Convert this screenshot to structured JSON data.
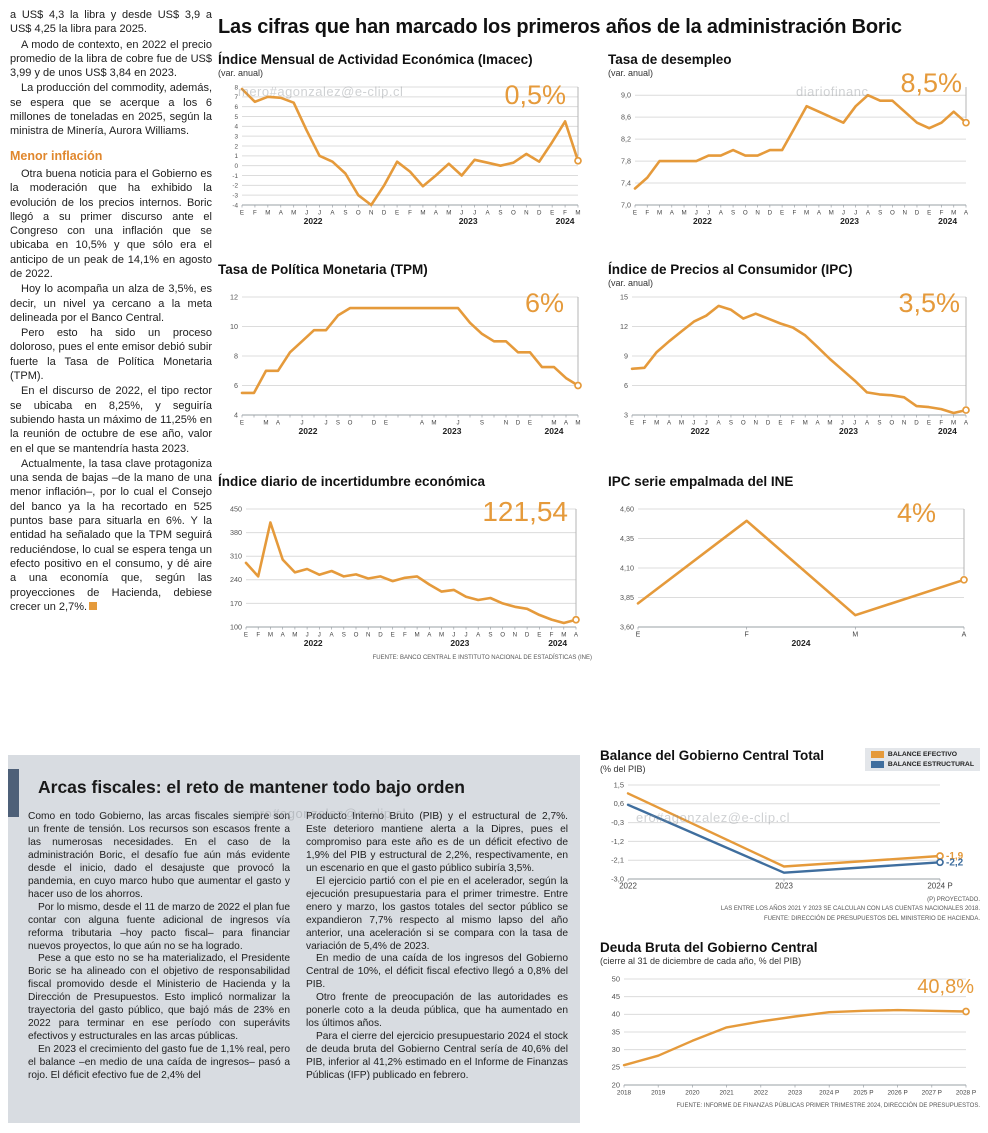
{
  "colors": {
    "accent": "#E59A3B",
    "blue": "#3F6E9E",
    "box_bg": "#D8DCE1"
  },
  "header": {
    "title": "Las cifras que han marcado los primeros años de la administración Boric"
  },
  "article": {
    "paragraphs": [
      "a US$ 4,3 la libra y desde US$ 3,9 a US$ 4,25 la libra para 2025.",
      "A modo de contexto, en 2022 el precio promedio de la libra de cobre fue de US$ 3,99 y de unos US$ 3,84 en 2023.",
      "La producción del commodity, además, se espera que se acerque a los 6 millones de toneladas en 2025, según la ministra de Minería, Aurora Williams.",
      "Otra buena noticia para el Gobierno es la moderación que ha exhibido la evolución de los precios internos. Boric llegó a su primer discurso ante el Congreso con una inflación que se ubicaba en 10,5% y que sólo era el anticipo de un peak de 14,1% en agosto de 2022.",
      "Hoy lo acompaña un alza de 3,5%, es decir, un nivel ya cercano a la meta delineada por el Banco Central.",
      "Pero esto ha sido un proceso doloroso, pues el ente emisor debió subir fuerte la Tasa de Política Monetaria (TPM).",
      "En el discurso de 2022, el tipo rector se ubicaba en 8,25%, y seguiría subiendo hasta un máximo de 11,25% en la reunión de octubre de ese año, valor en el que se mantendría hasta 2023.",
      "Actualmente, la tasa clave protagoniza una senda de bajas –de la mano de una menor inflación–, por lo cual el Consejo del banco ya la ha recortado en 525 puntos base para situarla en 6%. Y la entidad ha señalado que la TPM seguirá reduciéndose, lo cual se espera tenga un efecto positivo en el consumo, y dé aire a una economía que, según las proyecciones de Hacienda, debiese crecer un 2,7%."
    ],
    "subhead": "Menor inflación"
  },
  "fiscal": {
    "title": "Arcas fiscales: el reto de mantener todo bajo orden",
    "col1": [
      "Como en todo Gobierno, las arcas fiscales siempre son un frente de tensión. Los recursos son escasos frente a las numerosas necesidades. En el caso de la administración Boric, el desafío fue aún más evidente desde el inicio, dado el desajuste que provocó la pandemia, en cuyo marco hubo que aumentar el gasto y hacer uso de los ahorros.",
      "Por lo mismo, desde el 11 de marzo de 2022 el plan fue contar con alguna fuente adicional de ingresos vía reforma tributaria –hoy pacto fiscal– para financiar nuevos proyectos, lo que aún no se ha logrado.",
      "Pese a que esto no se ha materializado, el Presidente Boric se ha alineado con el objetivo de responsabilidad fiscal promovido desde el Ministerio de Hacienda y la Dirección de Presupuestos. Esto implicó normalizar la trayectoria del gasto público, que bajó más de 23% en 2022 para terminar en ese período con superávits efectivos y estructurales en las arcas públicas.",
      "En 2023 el crecimiento del gasto fue de 1,1% real, pero el balance –en medio de una caída de ingresos– pasó a rojo. El déficit efectivo fue de 2,4% del"
    ],
    "col2": [
      "Producto Interno Bruto (PIB) y el estructural de 2,7%. Este deterioro mantiene alerta a la Dipres, pues el compromiso para este año es de un déficit efectivo de 1,9% del PIB y estructural de 2,2%, respectivamente, en un escenario en que el gasto público subiría 3,5%.",
      "El ejercicio partió con el pie en el acelerador, según la ejecución presupuestaria para el primer trimestre. Entre enero y marzo, los gastos totales del sector público se expandieron 7,7% respecto al mismo lapso del año anterior, una aceleración si se compara con la tasa de variación de 5,4% de 2023.",
      "En medio de una caída de los ingresos del Gobierno Central de 10%, el déficit fiscal efectivo llegó a 0,8% del PIB.",
      "Otro frente de preocupación de las autoridades es ponerle coto a la deuda pública, que ha aumentado en los últimos años.",
      "Para el cierre del ejercicio presupuestario 2024 el stock de deuda bruta del Gobierno Central sería de 40,6% del PIB, inferior al 41,2% estimado en el Informe de Finanzas Públicas (IFP) publicado en febrero."
    ]
  },
  "watermarks": {
    "wm1": "mero#agonzalez@e-clip.cl",
    "wm2": "diariofinanc",
    "wm3": "ero#agonzalez@e-clip.cl",
    "wm4": "ero#agonzalez@e-clip.cl"
  },
  "chart_data": [
    {
      "id": "imacec",
      "type": "line",
      "title": "Índice Mensual de Actividad Económica (Imacec)",
      "subtitle": "(var. anual)",
      "big_value": "0,5%",
      "y_min": -4,
      "y_max": 8,
      "y_ticks": [
        "8",
        "7",
        "6",
        "5",
        "4",
        "3",
        "2",
        "1",
        "0",
        "-1",
        "-2",
        "-3",
        "-4"
      ],
      "y_font": 6.4,
      "x_font": 6.2,
      "pad": [
        24,
        6,
        14,
        26
      ],
      "drop_line": true,
      "x_labels": [
        "E",
        "F",
        "M",
        "A",
        "M",
        "J",
        "J",
        "A",
        "S",
        "O",
        "N",
        "D",
        "E",
        "F",
        "M",
        "A",
        "M",
        "J",
        "J",
        "A",
        "S",
        "O",
        "N",
        "D",
        "E",
        "F",
        "M"
      ],
      "year_labels": [
        {
          "label": "2022",
          "start": 0,
          "end": 11
        },
        {
          "label": "2023",
          "start": 12,
          "end": 23
        },
        {
          "label": "2024",
          "start": 24,
          "end": 26
        }
      ],
      "series": [
        {
          "name": "Imacec",
          "color": "#E59A3B",
          "width": 2.6,
          "end_marker": true,
          "values": [
            7.8,
            6.5,
            7.0,
            6.9,
            6.4,
            3.6,
            1.0,
            0.4,
            -0.8,
            -3.0,
            -4.0,
            -2.0,
            0.4,
            -0.6,
            -2.1,
            -1.0,
            0.2,
            -1.0,
            0.6,
            0.3,
            0.0,
            0.3,
            1.2,
            0.4,
            2.4,
            4.5,
            0.5
          ]
        }
      ]
    },
    {
      "id": "desempleo",
      "type": "line",
      "title": "Tasa de desempleo",
      "subtitle": "(var. anual)",
      "big_value": "8,5%",
      "y_min": 7.0,
      "y_max": 9.15,
      "y_ticks": [
        "9,0",
        "8,6",
        "8,2",
        "7,8",
        "7,4",
        "7,0"
      ],
      "y_font": 7.2,
      "x_font": 6.2,
      "pad": [
        27,
        6,
        14,
        26
      ],
      "drop_line": true,
      "x_labels": [
        "E",
        "F",
        "M",
        "A",
        "M",
        "J",
        "J",
        "A",
        "S",
        "O",
        "N",
        "D",
        "E",
        "F",
        "M",
        "A",
        "M",
        "J",
        "J",
        "A",
        "S",
        "O",
        "N",
        "D",
        "E",
        "F",
        "M",
        "A"
      ],
      "year_labels": [
        {
          "label": "2022",
          "start": 0,
          "end": 11
        },
        {
          "label": "2023",
          "start": 12,
          "end": 23
        },
        {
          "label": "2024",
          "start": 24,
          "end": 27
        }
      ],
      "series": [
        {
          "name": "Tasa de desempleo",
          "color": "#E59A3B",
          "width": 2.6,
          "end_marker": true,
          "values": [
            7.3,
            7.5,
            7.8,
            7.8,
            7.8,
            7.8,
            7.9,
            7.9,
            8.0,
            7.9,
            7.9,
            8.0,
            8.0,
            8.4,
            8.8,
            8.7,
            8.6,
            8.5,
            8.8,
            9.0,
            8.9,
            8.9,
            8.7,
            8.5,
            8.4,
            8.5,
            8.7,
            8.5
          ]
        }
      ]
    },
    {
      "id": "tpm",
      "type": "line",
      "title": "Tasa de Política Monetaria (TPM)",
      "subtitle": "",
      "big_value": "6%",
      "y_min": 4,
      "y_max": 12,
      "y_ticks": [
        "12",
        "10",
        "8",
        "6",
        "4"
      ],
      "y_font": 7.2,
      "x_font": 6.2,
      "pad": [
        24,
        6,
        14,
        26
      ],
      "drop_line": true,
      "x_labels": [
        "E",
        "",
        "M",
        "A",
        "",
        "J",
        "",
        "J",
        "S",
        "O",
        "",
        "D",
        "E",
        "",
        "",
        "A",
        "M",
        "",
        "J",
        "",
        "S",
        "",
        "N",
        "D",
        "E",
        "",
        "M",
        "A",
        "M"
      ],
      "year_labels": [
        {
          "label": "2022",
          "start": 0,
          "end": 11
        },
        {
          "label": "2023",
          "start": 12,
          "end": 23
        },
        {
          "label": "2024",
          "start": 24,
          "end": 28
        }
      ],
      "series": [
        {
          "name": "TPM",
          "color": "#E59A3B",
          "width": 2.6,
          "end_marker": true,
          "values": [
            5.5,
            5.5,
            7.0,
            7.0,
            8.25,
            9.0,
            9.75,
            9.75,
            10.75,
            11.25,
            11.25,
            11.25,
            11.25,
            11.25,
            11.25,
            11.25,
            11.25,
            11.25,
            11.25,
            10.25,
            9.5,
            9.0,
            9.0,
            8.25,
            8.25,
            7.25,
            7.25,
            6.5,
            6.0
          ]
        }
      ]
    },
    {
      "id": "ipc",
      "type": "line",
      "title": "Índice de Precios al Consumidor (IPC)",
      "subtitle": "(var. anual)",
      "big_value": "3,5%",
      "y_min": 3,
      "y_max": 15,
      "y_ticks": [
        "15",
        "12",
        "9",
        "6",
        "3"
      ],
      "y_font": 7.2,
      "x_font": 6.2,
      "pad": [
        24,
        6,
        14,
        26
      ],
      "drop_line": true,
      "x_labels": [
        "E",
        "F",
        "M",
        "A",
        "M",
        "J",
        "J",
        "A",
        "S",
        "O",
        "N",
        "D",
        "E",
        "F",
        "M",
        "A",
        "M",
        "J",
        "J",
        "A",
        "S",
        "O",
        "N",
        "D",
        "E",
        "F",
        "M",
        "A"
      ],
      "year_labels": [
        {
          "label": "2022",
          "start": 0,
          "end": 11
        },
        {
          "label": "2023",
          "start": 12,
          "end": 23
        },
        {
          "label": "2024",
          "start": 24,
          "end": 27
        }
      ],
      "series": [
        {
          "name": "IPC",
          "color": "#E59A3B",
          "width": 2.6,
          "end_marker": true,
          "values": [
            7.7,
            7.8,
            9.4,
            10.5,
            11.5,
            12.5,
            13.1,
            14.1,
            13.7,
            12.8,
            13.3,
            12.8,
            12.3,
            11.9,
            11.1,
            9.9,
            8.7,
            7.6,
            6.5,
            5.3,
            5.1,
            5.0,
            4.8,
            3.9,
            3.8,
            3.6,
            3.2,
            3.5
          ]
        }
      ]
    },
    {
      "id": "incertidumbre",
      "type": "line",
      "title": "Índice diario de incertidumbre económica",
      "subtitle": "",
      "big_value": "121,54",
      "source": "FUENTE: BANCO CENTRAL E INSTITUTO NACIONAL DE ESTADÍSTICAS (INE)",
      "y_min": 100,
      "y_max": 450,
      "y_ticks": [
        "450",
        "380",
        "310",
        "240",
        "170",
        "100"
      ],
      "y_font": 7.2,
      "x_font": 6.2,
      "pad": [
        28,
        6,
        16,
        26
      ],
      "drop_line": true,
      "x_labels": [
        "E",
        "F",
        "M",
        "A",
        "M",
        "J",
        "J",
        "A",
        "S",
        "O",
        "N",
        "D",
        "E",
        "F",
        "M",
        "A",
        "M",
        "J",
        "J",
        "A",
        "S",
        "O",
        "N",
        "D",
        "E",
        "F",
        "M",
        "A"
      ],
      "year_labels": [
        {
          "label": "2022",
          "start": 0,
          "end": 11
        },
        {
          "label": "2023",
          "start": 12,
          "end": 23
        },
        {
          "label": "2024",
          "start": 24,
          "end": 27
        }
      ],
      "series": [
        {
          "name": "Incertidumbre económica",
          "color": "#E59A3B",
          "width": 2.6,
          "end_marker": true,
          "values": [
            290,
            250,
            410,
            300,
            262,
            272,
            255,
            266,
            250,
            256,
            244,
            250,
            236,
            246,
            250,
            226,
            205,
            210,
            190,
            180,
            186,
            170,
            160,
            154,
            136,
            122,
            112,
            121.54
          ]
        }
      ]
    },
    {
      "id": "ipc-empalmada",
      "type": "line",
      "title": "IPC serie empalmada del INE",
      "subtitle": "",
      "big_value": "4%",
      "y_min": 3.6,
      "y_max": 4.6,
      "y_ticks": [
        "4,60",
        "4,35",
        "4,10",
        "3,85",
        "3,60"
      ],
      "y_font": 7.2,
      "x_font": 7,
      "pad": [
        30,
        6,
        16,
        26
      ],
      "drop_line": true,
      "x_labels": [
        "E",
        "F",
        "M",
        "A"
      ],
      "year_labels": [
        {
          "label": "2024",
          "start": 0,
          "end": 3
        }
      ],
      "series": [
        {
          "name": "IPC empalmado",
          "color": "#E59A3B",
          "width": 2.6,
          "end_marker": true,
          "values": [
            3.8,
            4.5,
            3.7,
            4.0
          ]
        }
      ]
    },
    {
      "id": "balance",
      "type": "line",
      "title": "Balance del Gobierno Central Total",
      "subtitle": "(% del PIB)",
      "footnotes": [
        "(P) PROYECTADO.",
        "LAS ENTRE LOS AÑOS 2021 Y 2023 SE CALCULAN  CON LAS CUENTAS NACIONALES 2018.",
        "FUENTE: DIRECCIÓN DE PRESUPUESTOS DEL MINISTERIO DE HACIENDA."
      ],
      "y_min": -3.0,
      "y_max": 1.5,
      "y_ticks": [
        "1,5",
        "0,6",
        "-0,3",
        "-1,2",
        "-2,1",
        "-3,0"
      ],
      "y_font": 7.5,
      "x_font": 8,
      "pad": [
        28,
        8,
        40,
        16
      ],
      "x_labels": [
        "2022",
        "2023",
        "2024 P"
      ],
      "series": [
        {
          "name": "BALANCE EFECTIVO",
          "color": "#E59A3B",
          "width": 2.4,
          "end_marker": true,
          "end_label": "-1,9",
          "values": [
            1.1,
            -2.4,
            -1.9
          ]
        },
        {
          "name": "BALANCE ESTRUCTURAL",
          "color": "#3F6E9E",
          "width": 2.4,
          "end_marker": true,
          "end_label": "-2,2",
          "values": [
            0.55,
            -2.7,
            -2.2
          ]
        }
      ]
    },
    {
      "id": "deuda",
      "type": "line",
      "title": "Deuda Bruta del Gobierno Central",
      "subtitle": "(cierre al 31 de diciembre de cada año, % del PIB)",
      "big_value": "40,8%",
      "source": "FUENTE: INFORME DE FINANZAS PÚBLICAS PRIMER TRIMESTRE 2024, DIRECCIÓN DE PRESUPUESTOS.",
      "y_min": 20,
      "y_max": 50,
      "y_ticks": [
        "50",
        "45",
        "40",
        "35",
        "30",
        "25",
        "20"
      ],
      "y_font": 7.5,
      "x_font": 6.4,
      "pad": [
        24,
        10,
        14,
        16
      ],
      "x_labels": [
        "2018",
        "2019",
        "2020",
        "2021",
        "2022",
        "2023",
        "2024 P",
        "2025 P",
        "2026 P",
        "2027 P",
        "2028 P"
      ],
      "series": [
        {
          "name": "Deuda bruta",
          "color": "#E59A3B",
          "width": 2.4,
          "end_marker": true,
          "values": [
            25.6,
            28.3,
            32.5,
            36.3,
            38.0,
            39.4,
            40.6,
            41.0,
            41.2,
            41.0,
            40.8
          ]
        }
      ]
    }
  ]
}
